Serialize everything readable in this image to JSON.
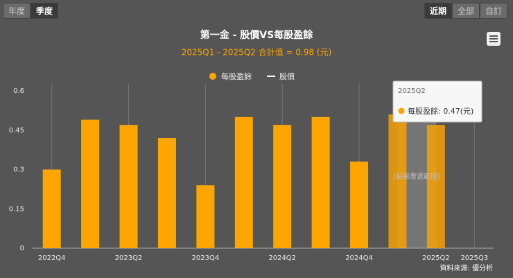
{
  "ui": {
    "period_buttons": [
      "年度",
      "季度"
    ],
    "range_buttons": [
      "近期",
      "全部",
      "自訂"
    ],
    "selection_hint": "(點擊重選範圍)",
    "source": "資料來源: 優分析",
    "tooltip": {
      "title": "2025Q2",
      "text": "每股盈餘: 0.47(元)"
    }
  },
  "chart_data": {
    "type": "bar",
    "title": "第一金 - 股價VS每股盈餘",
    "subtitle": "2025Q1 - 2025Q2 合計值 = 0.98 (元)",
    "categories": [
      "2022Q4",
      null,
      "2023Q2",
      null,
      "2023Q4",
      null,
      "2024Q2",
      null,
      "2024Q4",
      null,
      "2025Q2",
      "2025Q3"
    ],
    "series": [
      {
        "name": "每股盈餘",
        "color": "#ffa500",
        "values": [
          0.3,
          0.49,
          0.47,
          0.42,
          0.24,
          0.5,
          0.47,
          0.5,
          0.33,
          0.51,
          0.47,
          null
        ]
      },
      {
        "name": "股價",
        "color": "#ffffff",
        "values": [
          null,
          null,
          null,
          null,
          null,
          null,
          null,
          null,
          null,
          null,
          null,
          null
        ]
      }
    ],
    "ylim": [
      0,
      0.6
    ],
    "yticks": [
      0,
      0.15,
      0.3,
      0.45,
      0.6
    ],
    "grid": true
  }
}
